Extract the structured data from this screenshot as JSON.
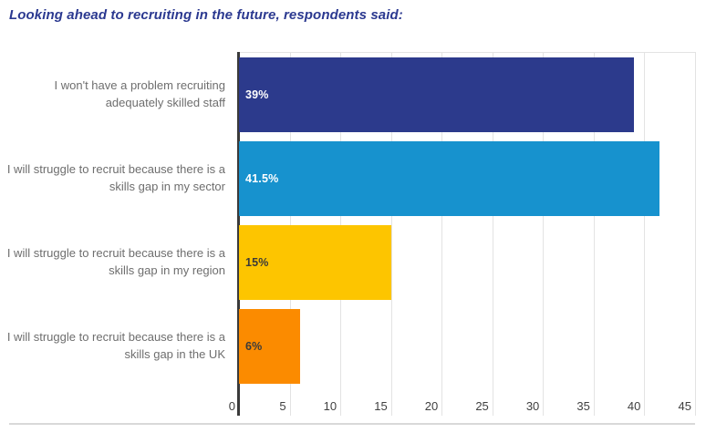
{
  "page": {
    "background": "#ffffff"
  },
  "title": {
    "text": "Looking ahead to recruiting in the future, respondents said:",
    "color": "#2b3990"
  },
  "chart_data": {
    "type": "bar",
    "orientation": "horizontal",
    "title": "Looking ahead to recruiting in the future, respondents said:",
    "categories": [
      "I won't have a problem recruiting\nadequately skilled staff",
      "I will struggle to recruit because there is a\nskills gap in my sector",
      "I will struggle to recruit because there is a\nskills gap in my region",
      "I will struggle to recruit because there is a\nskills gap in the UK"
    ],
    "values": [
      39,
      41.5,
      15,
      6
    ],
    "value_labels": [
      "39%",
      "41.5%",
      "15%",
      "6%"
    ],
    "bar_colors": [
      "#2c3a8c",
      "#1792ce",
      "#fdc500",
      "#fb8b00"
    ],
    "value_label_colors": [
      "#ffffff",
      "#ffffff",
      "#3a3a3a",
      "#3a3a3a"
    ],
    "xlabel": "",
    "ylabel": "",
    "xlim": [
      0,
      45
    ],
    "xticks": [
      0,
      5,
      10,
      15,
      20,
      25,
      30,
      35,
      40,
      45
    ],
    "grid": "vertical-gridlines-on",
    "legend": "none",
    "axis_line_color": "#3a3a3a",
    "gridline_color": "#e3e3e3",
    "tick_label_color": "#404040",
    "category_label_color": "#6e6e6e"
  },
  "footer": {
    "divider_color": "#d9d9d9"
  }
}
